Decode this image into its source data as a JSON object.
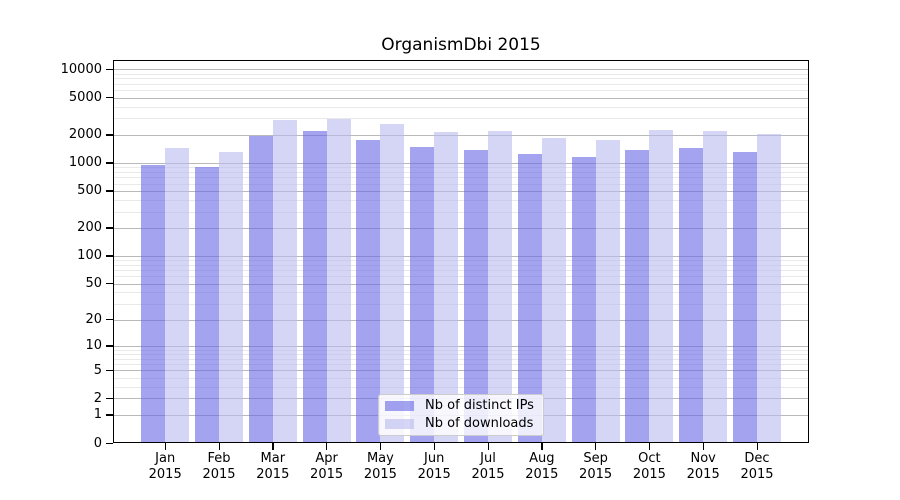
{
  "chart_data": {
    "type": "bar",
    "title": "OrganismDbi 2015",
    "scale": "log1p",
    "categories": [
      "Jan",
      "Feb",
      "Mar",
      "Apr",
      "May",
      "Jun",
      "Jul",
      "Aug",
      "Sep",
      "Oct",
      "Nov",
      "Dec"
    ],
    "year": "2015",
    "series": [
      {
        "name": "Nb of distinct IPs",
        "color": "rgba(102,102,230,0.6)",
        "values": [
          950,
          900,
          1960,
          2210,
          1760,
          1460,
          1360,
          1240,
          1140,
          1380,
          1440,
          1320
        ]
      },
      {
        "name": "Nb of downloads",
        "color": "rgba(185,185,240,0.6)",
        "values": [
          1440,
          1300,
          2890,
          2940,
          2610,
          2150,
          2170,
          1860,
          1750,
          2220,
          2190,
          2030
        ]
      }
    ],
    "yticks": [
      0,
      1,
      2,
      5,
      10,
      20,
      50,
      100,
      200,
      500,
      1000,
      2000,
      5000,
      10000
    ],
    "ylim": [
      0,
      12500
    ],
    "grid": true,
    "gridline_major_color": "#b9b9b9",
    "gridline_minor_color": "#e9e9e9",
    "legend_position": "bottom-center"
  }
}
